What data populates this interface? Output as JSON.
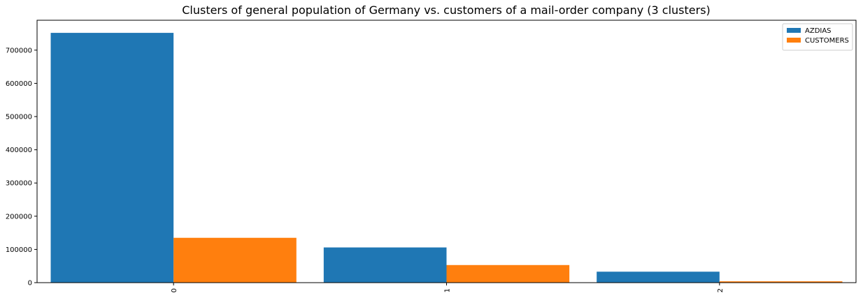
{
  "chart_data": {
    "type": "bar",
    "title": "Clusters of general population of Germany vs. customers of a mail-order company (3 clusters)",
    "xlabel": "",
    "ylabel": "",
    "categories": [
      "0",
      "1",
      "2"
    ],
    "series": [
      {
        "name": "AZDIAS",
        "color": "#1f77b4",
        "values": [
          752000,
          106000,
          33000
        ]
      },
      {
        "name": "CUSTOMERS",
        "color": "#ff7f0e",
        "values": [
          135000,
          53000,
          4000
        ]
      }
    ],
    "ylim": [
      0,
      790000
    ],
    "yticks": [
      0,
      100000,
      200000,
      300000,
      400000,
      500000,
      600000,
      700000
    ],
    "ytick_labels": [
      "0",
      "100000",
      "200000",
      "300000",
      "400000",
      "500000",
      "600000",
      "700000"
    ],
    "grid": false,
    "legend_position": "top-right",
    "xtick_rotation": "vertical"
  }
}
